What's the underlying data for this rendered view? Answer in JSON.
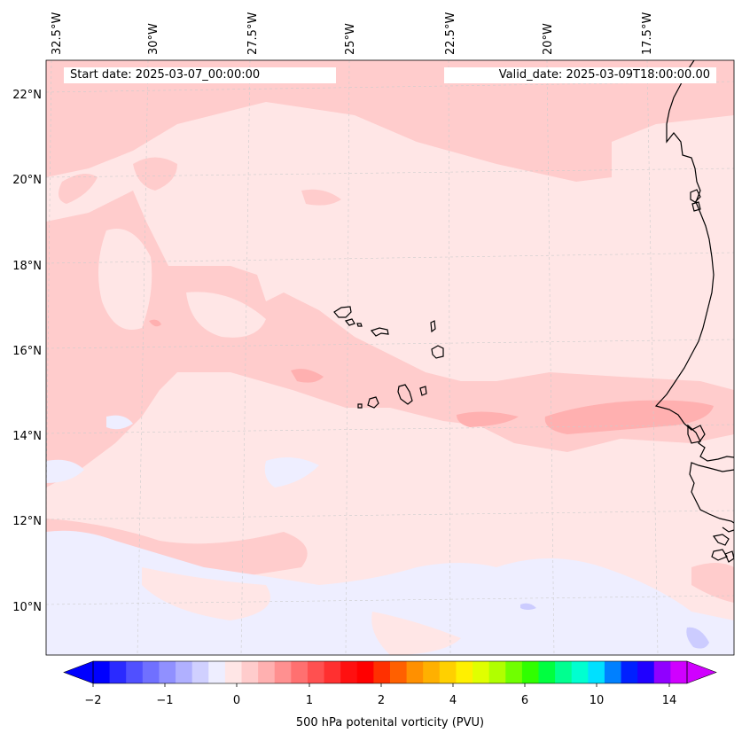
{
  "map": {
    "start_date_text": "Start date: 2025-03-07_00:00:00",
    "valid_date_text": "Valid_date: 2025-03-09T18:00:00.00",
    "longitude_labels": [
      "32.5°W",
      "30°W",
      "27.5°W",
      "25°W",
      "22.5°W",
      "20°W",
      "17.5°W"
    ],
    "latitude_labels": [
      "22°N",
      "20°N",
      "18°N",
      "16°N",
      "14°N",
      "12°N",
      "10°N"
    ],
    "field_colors": {
      "near_zero_positive": "#ffe6e6",
      "low_positive": "#ffcccc",
      "mid_positive": "#ffb0b0",
      "near_zero_negative": "#eeeeff",
      "low_negative": "#ccccff",
      "coastline": "#000000",
      "gridline": "#cccccc"
    }
  },
  "colorbar": {
    "title": "500 hPa potenital vorticity (PVU)",
    "tick_labels": [
      "−2",
      "−1",
      "0",
      "1",
      "2",
      "4",
      "6",
      "10",
      "14"
    ],
    "colors": [
      "#0000ff",
      "#2a2aff",
      "#5050ff",
      "#7070ff",
      "#9090ff",
      "#b0b0ff",
      "#d0d0ff",
      "#eeeeff",
      "#ffe6e6",
      "#ffcccc",
      "#ffb0b0",
      "#ff9090",
      "#ff7070",
      "#ff5050",
      "#ff3030",
      "#ff1010",
      "#ff0000",
      "#ff3000",
      "#ff6000",
      "#ff9000",
      "#ffb000",
      "#ffd000",
      "#fff000",
      "#e0ff00",
      "#b0ff00",
      "#70ff00",
      "#30ff00",
      "#00ff40",
      "#00ff90",
      "#00ffd0",
      "#00e0ff",
      "#0080ff",
      "#0020ff",
      "#2000ff",
      "#9000ff",
      "#d000ff"
    ],
    "extend": "both"
  }
}
